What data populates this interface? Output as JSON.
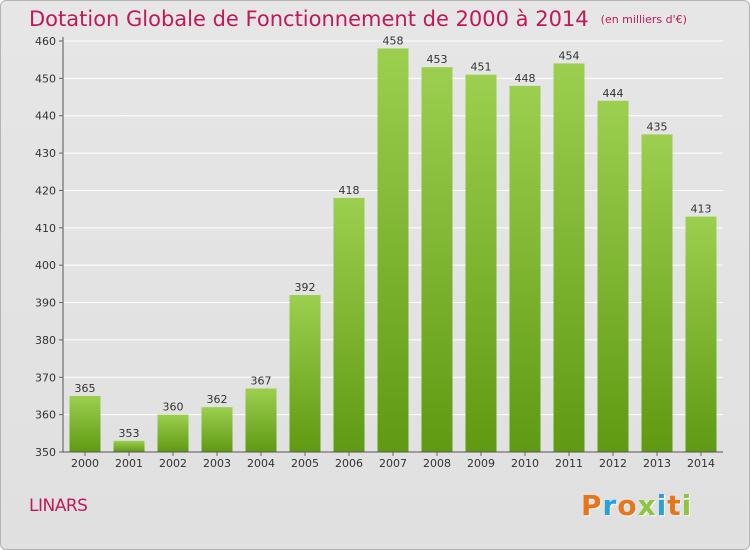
{
  "header": {
    "title": "Dotation Globale de Fonctionnement de 2000 à 2014",
    "subtitle": "(en milliers d'€)"
  },
  "footer": {
    "commune": "LINARS",
    "logo_text": "Proxiti",
    "logo_colors": [
      "#e8741b",
      "#2aa0d8",
      "#e8741b",
      "#8cc63f",
      "#2aa0d8",
      "#e8741b",
      "#8cc63f"
    ]
  },
  "colors": {
    "bar_top": "#9ccf4f",
    "bar_bottom": "#5f9a12",
    "title": "#c2185b"
  },
  "chart_data": {
    "type": "bar",
    "title": "Dotation Globale de Fonctionnement de 2000 à 2014",
    "subtitle": "(en milliers d'€)",
    "xlabel": "",
    "ylabel": "",
    "categories": [
      "2000",
      "2001",
      "2002",
      "2003",
      "2004",
      "2005",
      "2006",
      "2007",
      "2008",
      "2009",
      "2010",
      "2011",
      "2012",
      "2013",
      "2014"
    ],
    "values": [
      365,
      353,
      360,
      362,
      367,
      392,
      418,
      458,
      453,
      451,
      448,
      454,
      444,
      435,
      413
    ],
    "ylim": [
      350,
      460
    ],
    "yticks": [
      350,
      360,
      370,
      380,
      390,
      400,
      410,
      420,
      430,
      440,
      450,
      460
    ],
    "grid": true,
    "data_labels": true,
    "legend": "none"
  }
}
